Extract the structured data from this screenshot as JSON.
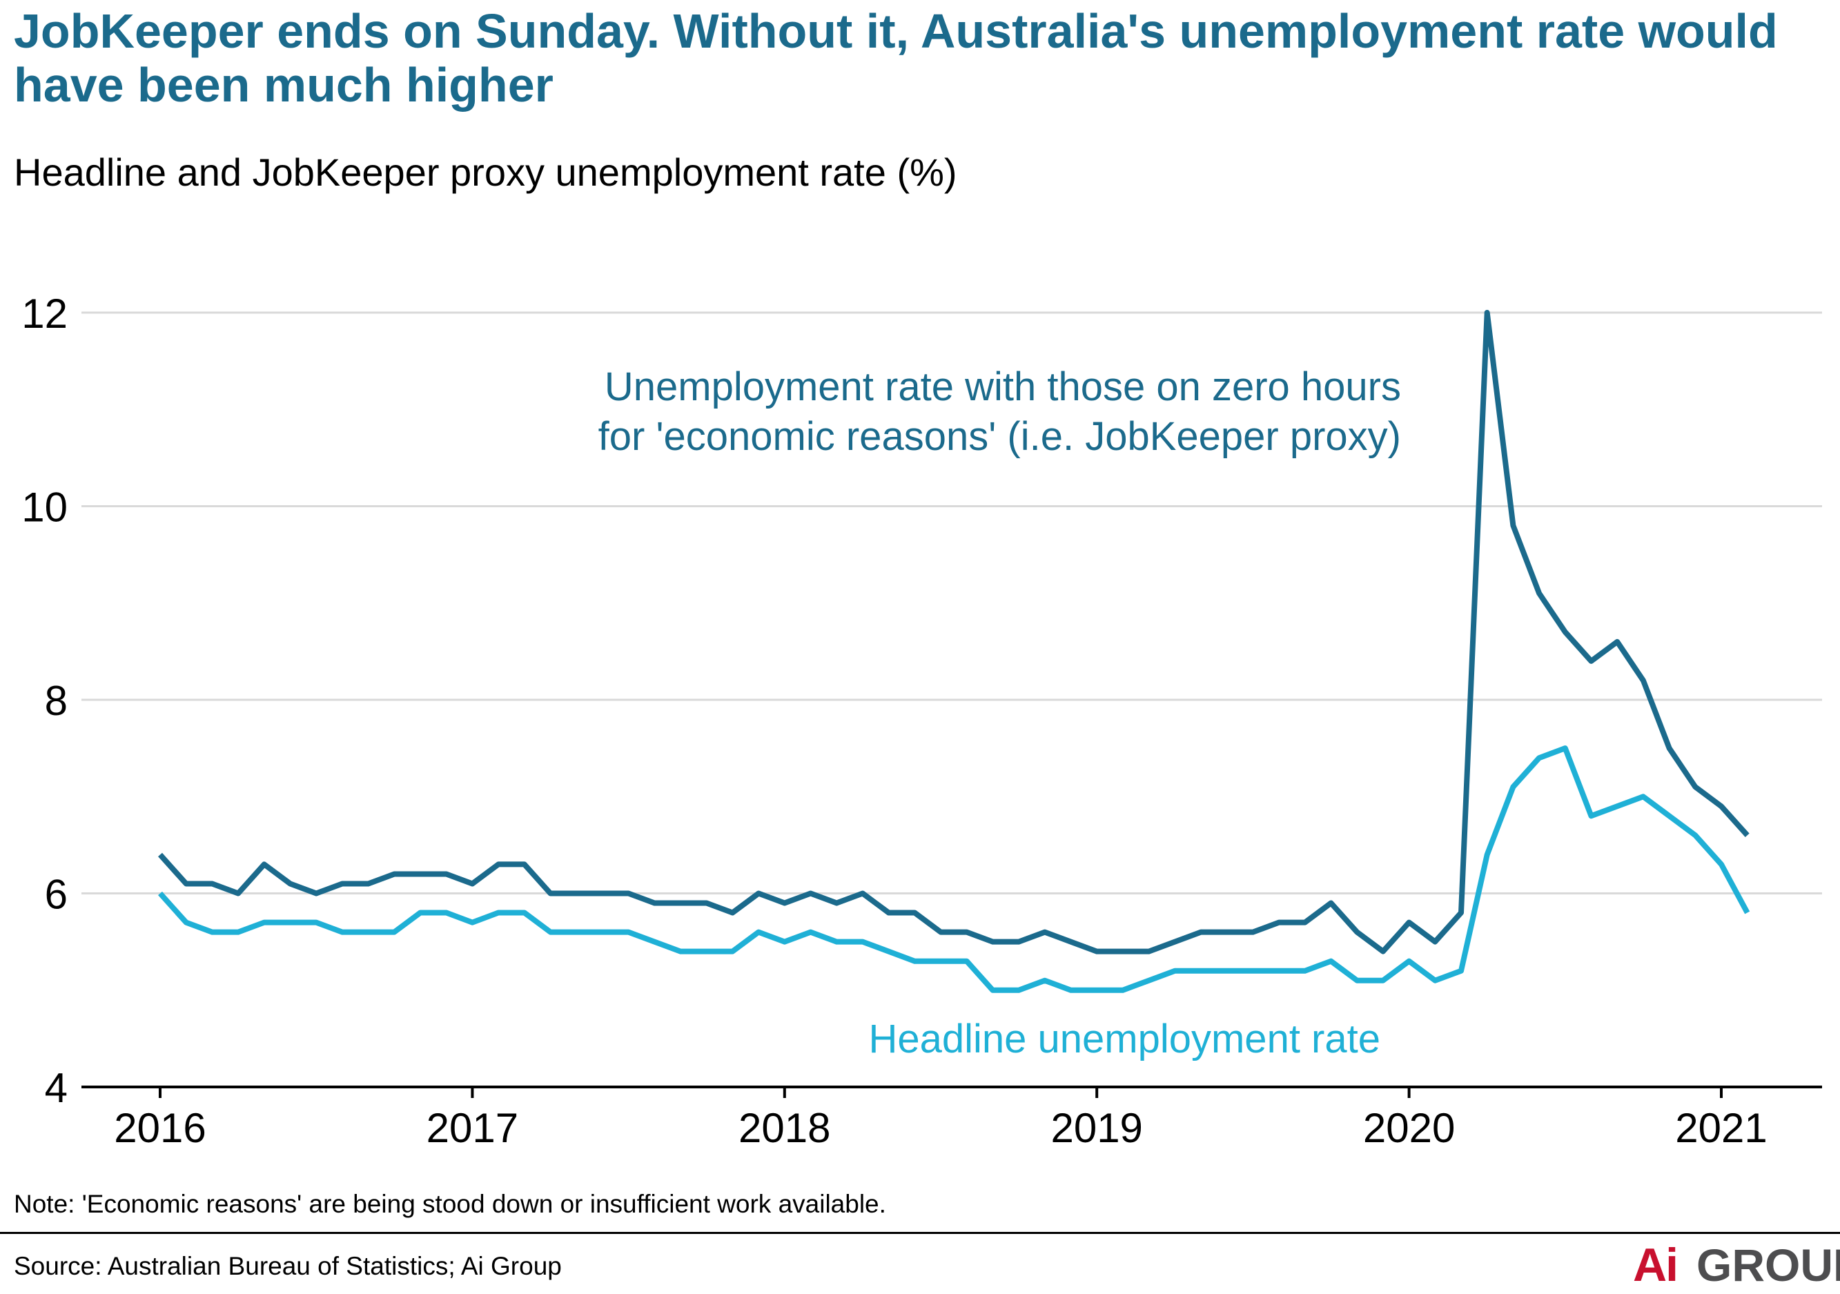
{
  "title": "JobKeeper ends on Sunday. Without it, Australia's unemployment rate would have been much higher",
  "subtitle": "Headline and JobKeeper proxy unemployment rate (%)",
  "note": "Note: 'Economic reasons' are being stood down or insufficient work available.",
  "source": "Source: Australian Bureau of Statistics; Ai Group",
  "logo": {
    "ai": "Ai",
    "group": "GROUP"
  },
  "colors": {
    "proxy": "#1b6a8c",
    "headline": "#1fb0d6",
    "title": "#1b6a8c",
    "logo_red": "#c8102e",
    "grid": "#d9d9d9"
  },
  "chart_data": {
    "type": "line",
    "title": "JobKeeper ends on Sunday. Without it, Australia's unemployment rate would have been much higher",
    "subtitle": "Headline and JobKeeper proxy unemployment rate (%)",
    "xlabel": "",
    "ylabel": "",
    "x_start": "2016-01",
    "x_frequency": "monthly",
    "x_ticks": [
      "2016",
      "2017",
      "2018",
      "2019",
      "2020",
      "2021"
    ],
    "ylim": [
      4,
      12
    ],
    "y_ticks": [
      4,
      6,
      8,
      10,
      12
    ],
    "grid": true,
    "series": [
      {
        "name": "Unemployment rate with those on zero hours for 'economic reasons' (i.e. JobKeeper proxy)",
        "label_lines": [
          "Unemployment rate with those on zero hours",
          "for 'economic reasons' (i.e. JobKeeper proxy)"
        ],
        "color": "#1b6a8c",
        "values": [
          6.4,
          6.1,
          6.1,
          6.0,
          6.3,
          6.1,
          6.0,
          6.1,
          6.1,
          6.2,
          6.2,
          6.2,
          6.1,
          6.3,
          6.3,
          6.0,
          6.0,
          6.0,
          6.0,
          5.9,
          5.9,
          5.9,
          5.8,
          6.0,
          5.9,
          6.0,
          5.9,
          6.0,
          5.8,
          5.8,
          5.6,
          5.6,
          5.5,
          5.5,
          5.6,
          5.5,
          5.4,
          5.4,
          5.4,
          5.5,
          5.6,
          5.6,
          5.6,
          5.7,
          5.7,
          5.9,
          5.6,
          5.4,
          5.7,
          5.5,
          5.8,
          12.0,
          9.8,
          9.1,
          8.7,
          8.4,
          8.6,
          8.2,
          7.5,
          7.1,
          6.9,
          6.6
        ]
      },
      {
        "name": "Headline unemployment rate",
        "label_lines": [
          "Headline unemployment rate"
        ],
        "color": "#1fb0d6",
        "values": [
          6.0,
          5.7,
          5.6,
          5.6,
          5.7,
          5.7,
          5.7,
          5.6,
          5.6,
          5.6,
          5.8,
          5.8,
          5.7,
          5.8,
          5.8,
          5.6,
          5.6,
          5.6,
          5.6,
          5.5,
          5.4,
          5.4,
          5.4,
          5.6,
          5.5,
          5.6,
          5.5,
          5.5,
          5.4,
          5.3,
          5.3,
          5.3,
          5.0,
          5.0,
          5.1,
          5.0,
          5.0,
          5.0,
          5.1,
          5.2,
          5.2,
          5.2,
          5.2,
          5.2,
          5.2,
          5.3,
          5.1,
          5.1,
          5.3,
          5.1,
          5.2,
          6.4,
          7.1,
          7.4,
          7.5,
          6.8,
          6.9,
          7.0,
          6.8,
          6.6,
          6.3,
          5.8
        ]
      }
    ]
  }
}
